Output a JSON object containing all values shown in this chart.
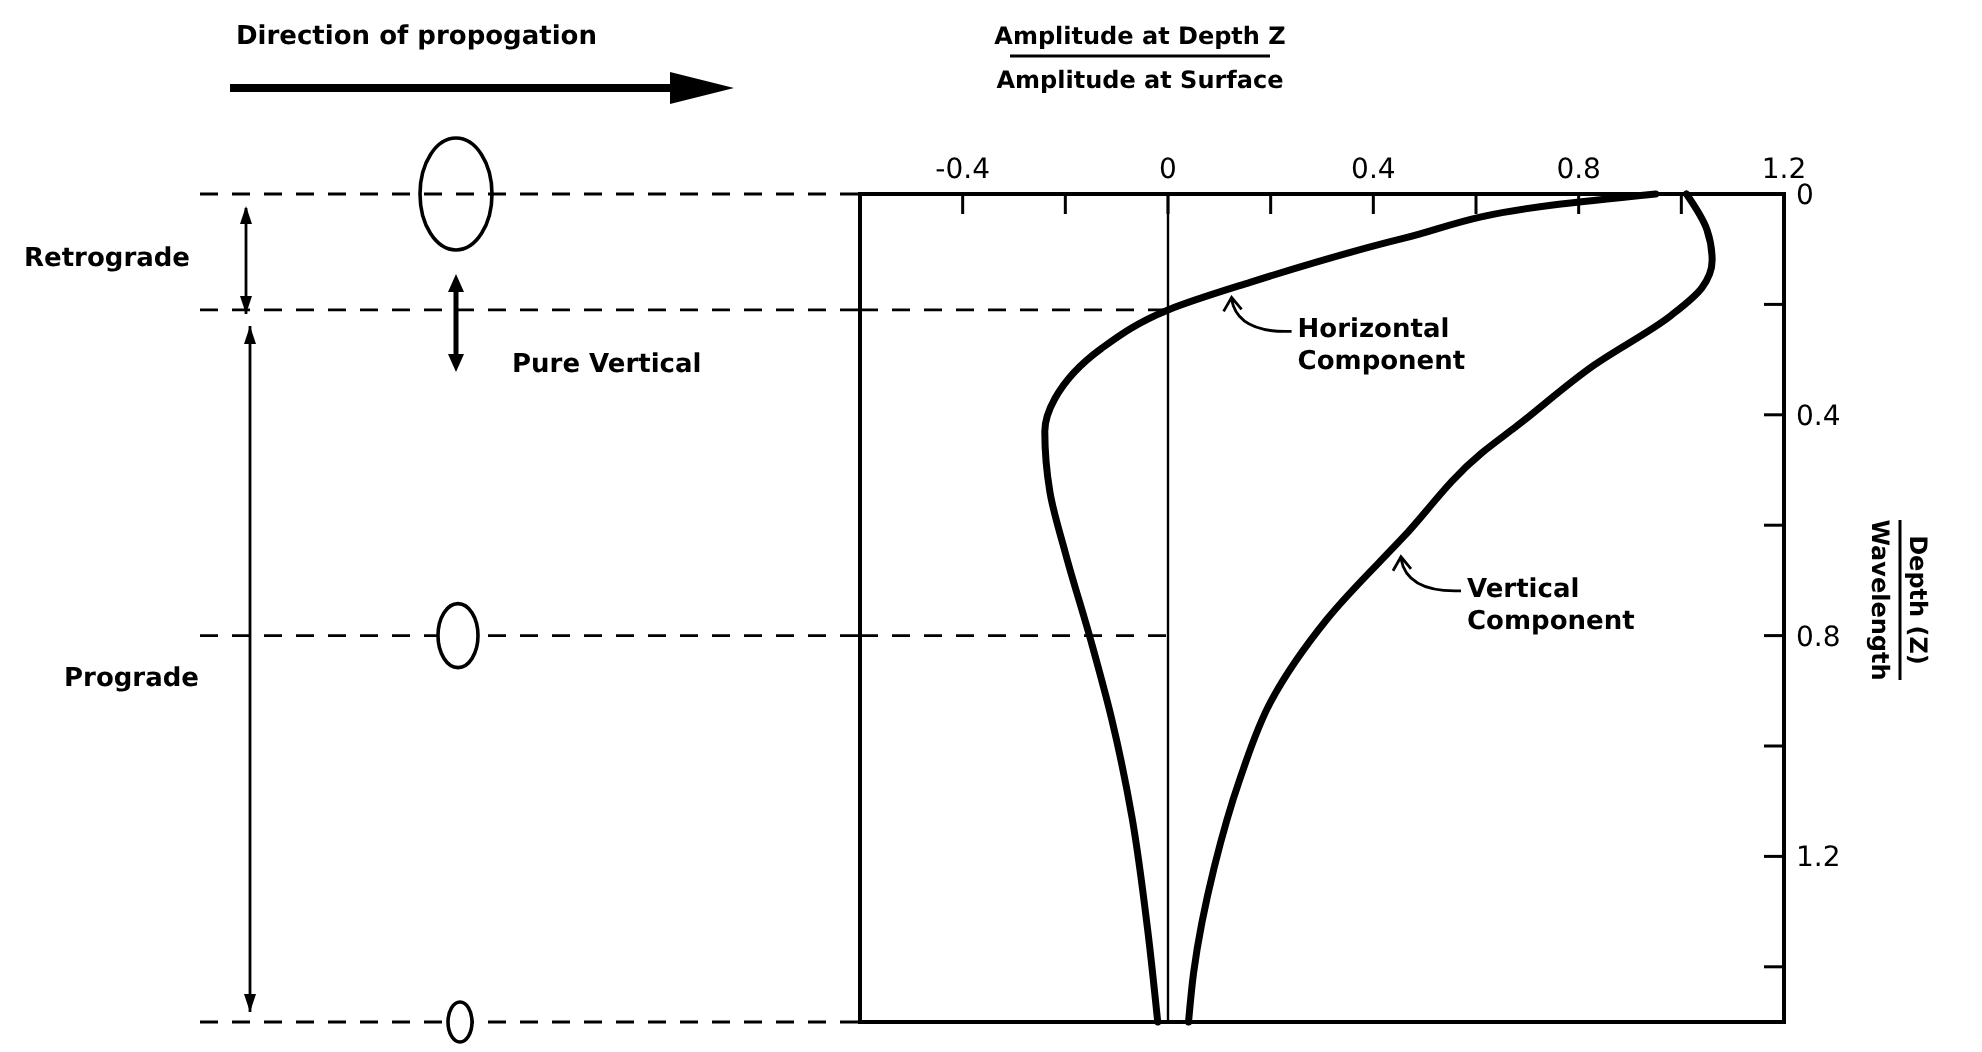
{
  "chart_data": {
    "type": "line",
    "xlabel": "Amplitude at Depth Z\nAmplitude at Surface",
    "ylabel": "Depth (Z)\nWavelength",
    "xlim": [
      -0.6,
      1.2
    ],
    "xticks": [
      -0.4,
      {
        "value": -0.2,
        "label": null
      },
      0,
      {
        "value": 0.2,
        "label": null
      },
      0.4,
      {
        "value": 0.6,
        "label": null
      },
      0.8,
      {
        "value": 1.0,
        "label": null
      },
      1.2
    ],
    "ylim": [
      1.5,
      0
    ],
    "yticks": [
      0,
      {
        "value": 0.2,
        "label": null
      },
      0.4,
      {
        "value": 0.6,
        "label": null
      },
      0.8,
      {
        "value": 1.0,
        "label": null
      },
      1.2,
      {
        "value": 1.4,
        "label": null
      }
    ],
    "marker": "none",
    "line_style": "solid",
    "series": [
      {
        "color": "#000000",
        "x": [
          0.95,
          0.75,
          0.46,
          0.16,
          0,
          -0.13,
          -0.22,
          -0.24,
          -0.23,
          -0.2,
          -0.15,
          -0.11,
          -0.07,
          -0.04,
          -0.02
        ],
        "values": [
          0,
          0.02,
          0.08,
          0.16,
          0.21,
          0.28,
          0.37,
          0.43,
          0.54,
          0.65,
          0.81,
          0.95,
          1.13,
          1.33,
          1.5
        ]
      },
      {
        "color": "#000000",
        "x": [
          1.01,
          1.05,
          1.06,
          1.04,
          0.98,
          0.83,
          0.68,
          0.61,
          0.46,
          0.31,
          0.2,
          0.14,
          0.09,
          0.05,
          0.04
        ],
        "values": [
          0,
          0.065,
          0.12,
          0.17,
          0.22,
          0.31,
          0.42,
          0.47,
          0.62,
          0.77,
          0.92,
          1.06,
          1.22,
          1.41,
          1.5
        ]
      }
    ],
    "ref_lines": [
      {
        "axis": "y",
        "value": 0.21,
        "line_style": "dashed"
      },
      {
        "axis": "y",
        "value": 0.8,
        "line_style": "dashed"
      },
      {
        "axis": "x",
        "value": 0,
        "line_style": "solid"
      }
    ],
    "annotations": [
      "Direction of propogation",
      "Retrograde",
      "Pure Vertical",
      "Prograde",
      {
        "text": "Horizontal Component",
        "x": 0.12,
        "y": 0.18
      },
      {
        "text": "Vertical Component",
        "x": 0.45,
        "y": 0.65
      }
    ]
  }
}
